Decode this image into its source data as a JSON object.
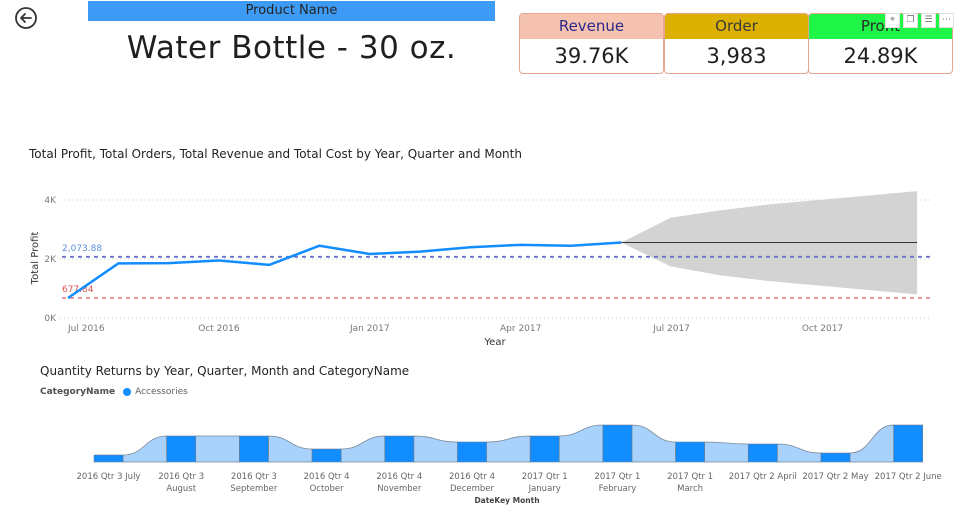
{
  "navigation": {
    "back_icon": "back-arrow-circle-icon"
  },
  "product": {
    "header_label": "Product Name",
    "name": "Water Bottle - 30 oz."
  },
  "kpis": [
    {
      "label": "Revenue",
      "value": "39.76K",
      "header_color": "#f4c2ae",
      "label_color": "#2b2a8c"
    },
    {
      "label": "Order",
      "value": "3,983",
      "header_color": "#dcb000",
      "label_color": "#3a3a3a"
    },
    {
      "label": "Profit",
      "value": "24.89K",
      "header_color": "#1ef546",
      "label_color": "#2a2a2a"
    }
  ],
  "visual_header_icons": [
    "pin-icon",
    "copy-icon",
    "filter-icon",
    "more-options-icon"
  ],
  "visual_header_glyphs": [
    "⌖",
    "❐",
    "☰",
    "⋯"
  ],
  "chart_data": [
    {
      "type": "line",
      "title": "Total Profit, Total Orders, Total Revenue and Total Cost by Year, Quarter and Month",
      "xlabel": "Year",
      "ylabel": "Total Profit",
      "ylim": [
        0,
        4000
      ],
      "yticks": [
        0,
        2000,
        4000
      ],
      "ytick_labels": [
        "0K",
        "2K",
        "4K"
      ],
      "xtick_labels": [
        "Jul 2016",
        "Oct 2016",
        "Jan 2017",
        "Apr 2017",
        "Jul 2017",
        "Oct 2017"
      ],
      "grid": true,
      "x": [
        "Jul 2016",
        "Aug 2016",
        "Sep 2016",
        "Oct 2016",
        "Nov 2016",
        "Dec 2016",
        "Jan 2017",
        "Feb 2017",
        "Mar 2017",
        "Apr 2017",
        "May 2017",
        "Jun 2017"
      ],
      "series": [
        {
          "name": "Total Profit",
          "color": "#118dff",
          "values": [
            677.84,
            1850,
            1860,
            1950,
            1800,
            2450,
            2170,
            2250,
            2400,
            2480,
            2450,
            2560
          ]
        }
      ],
      "reference_lines": [
        {
          "label": "2,073.88",
          "value": 2073.88,
          "color": "#6b73c8",
          "label_color": "#5b8fd6"
        },
        {
          "label": "677.84",
          "value": 677.84,
          "color": "#e88a8f",
          "label_color": "#d9534f"
        }
      ],
      "forecast": {
        "x": [
          "Jun 2017",
          "Jul 2017",
          "Aug 2017",
          "Sep 2017",
          "Oct 2017",
          "Nov 2017",
          "Dec 2017"
        ],
        "center": [
          2560,
          2560,
          2560,
          2560,
          2560,
          2560,
          2560
        ],
        "upper": [
          2560,
          3400,
          3650,
          3850,
          4000,
          4150,
          4300
        ],
        "lower": [
          2560,
          1750,
          1450,
          1250,
          1100,
          950,
          800
        ],
        "band_color": "#d3d3d3",
        "line_color": "#333333"
      }
    },
    {
      "type": "bar",
      "subtype": "ribbon",
      "title": "Quantity Returns by Year, Quarter, Month and CategoryName",
      "xlabel": "DateKey Month",
      "legend": {
        "title": "CategoryName",
        "entries": [
          "Accessories"
        ],
        "position": "top-left"
      },
      "categories": [
        "2016 Qtr 3 July",
        "2016 Qtr 3 August",
        "2016 Qtr 3 September",
        "2016 Qtr 4 October",
        "2016 Qtr 4 November",
        "2016 Qtr 4 December",
        "2017 Qtr 1 January",
        "2017 Qtr 1 February",
        "2017 Qtr 1 March",
        "2017 Qtr 2 April",
        "2017 Qtr 2 May",
        "2017 Qtr 2 June"
      ],
      "category_labels": [
        [
          "2016 Qtr 3 July"
        ],
        [
          "2016 Qtr 3",
          "August"
        ],
        [
          "2016 Qtr 3",
          "September"
        ],
        [
          "2016 Qtr 4",
          "October"
        ],
        [
          "2016 Qtr 4",
          "November"
        ],
        [
          "2016 Qtr 4",
          "December"
        ],
        [
          "2017 Qtr 1",
          "January"
        ],
        [
          "2017 Qtr 1",
          "February"
        ],
        [
          "2017 Qtr 1",
          "March"
        ],
        [
          "2017 Qtr 2 April"
        ],
        [
          "2017 Qtr 2 May"
        ],
        [
          "2017 Qtr 2 June"
        ]
      ],
      "series": [
        {
          "name": "Accessories",
          "color": "#118dff",
          "ribbon_color": "#a8d1fb",
          "values": [
            7,
            26,
            26,
            13,
            26,
            20,
            26,
            37,
            20,
            18,
            9,
            37
          ]
        }
      ],
      "ylim": [
        0,
        40
      ]
    }
  ]
}
